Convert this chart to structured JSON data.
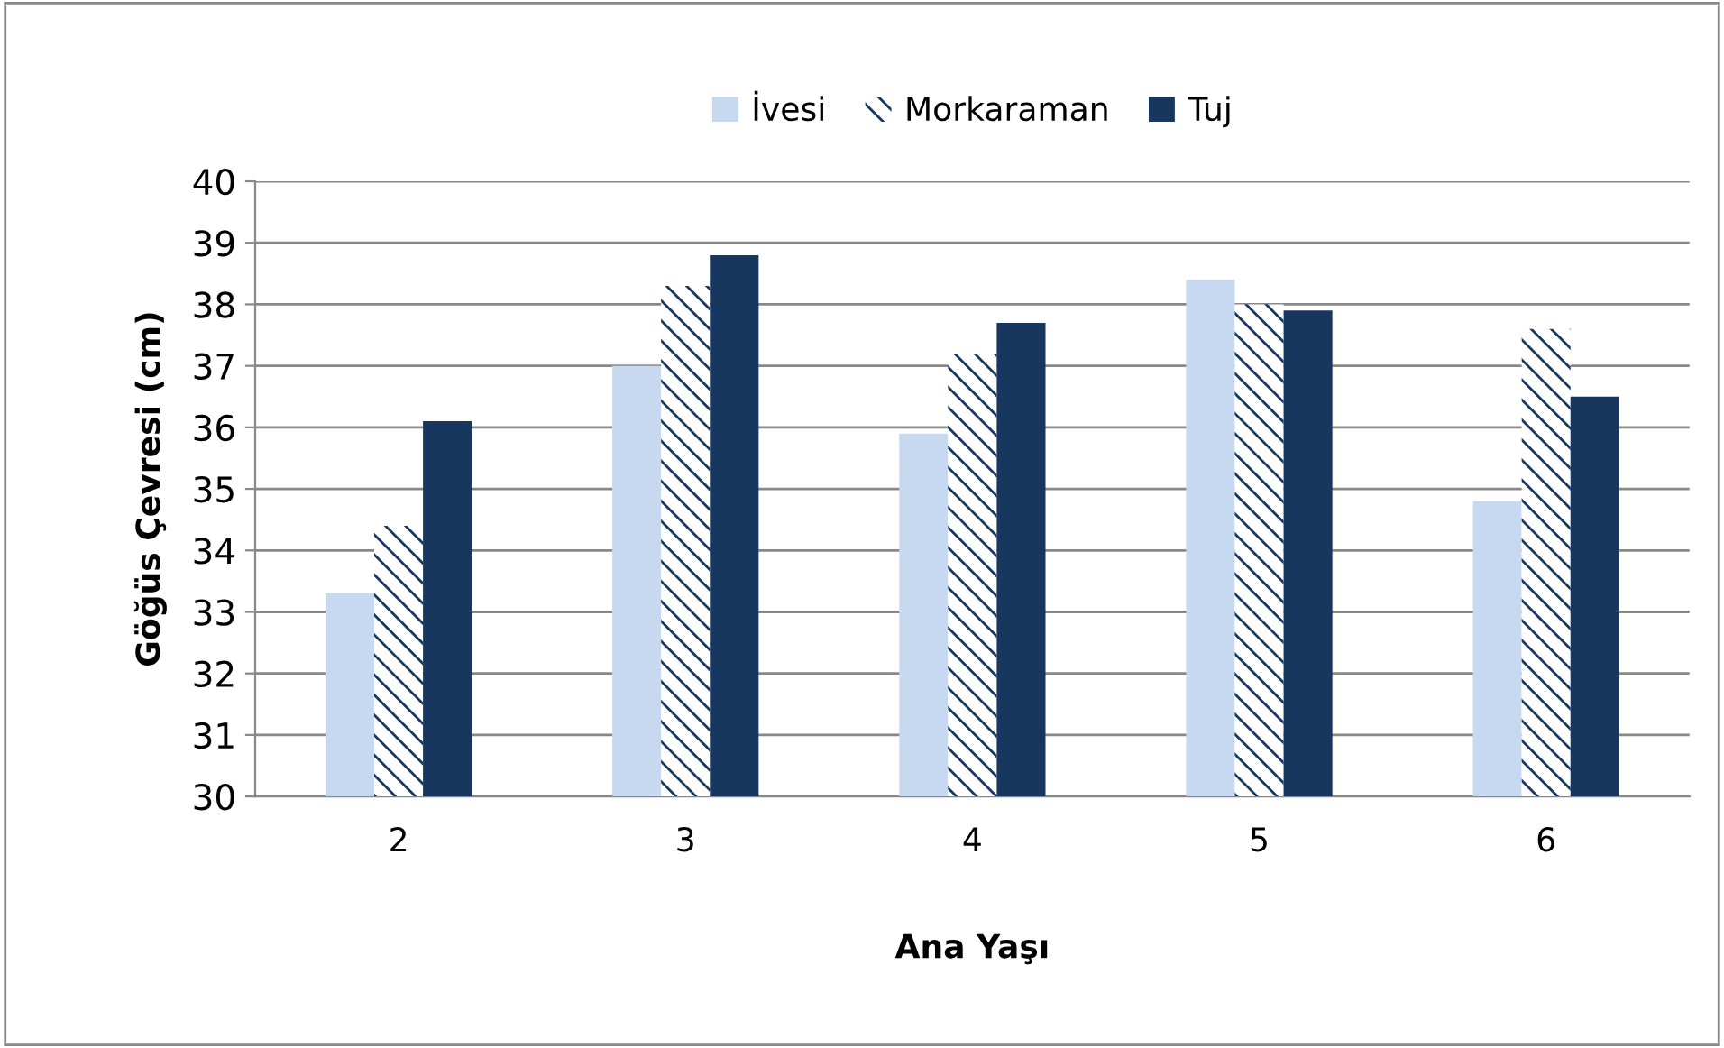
{
  "chart_data": {
    "type": "bar",
    "xlabel": "Ana Yaşı",
    "ylabel": "Göğüs Çevresi (cm)",
    "categories": [
      "2",
      "3",
      "4",
      "5",
      "6"
    ],
    "series": [
      {
        "name": "İvesi",
        "color": "#c6d9f1",
        "values": [
          33.3,
          37.0,
          35.9,
          38.4,
          34.8
        ]
      },
      {
        "name": "Morkaraman",
        "color": "#17375e",
        "values": [
          34.4,
          38.3,
          37.2,
          38.0,
          37.6
        ]
      },
      {
        "name": "Tuj",
        "color": "#17375e",
        "values": [
          36.1,
          38.8,
          37.7,
          37.9,
          36.5
        ]
      }
    ],
    "ylim": [
      30,
      40
    ],
    "yticks": [
      30,
      31,
      32,
      33,
      34,
      35,
      36,
      37,
      38,
      39,
      40
    ],
    "grid": "y",
    "legend": "top"
  }
}
